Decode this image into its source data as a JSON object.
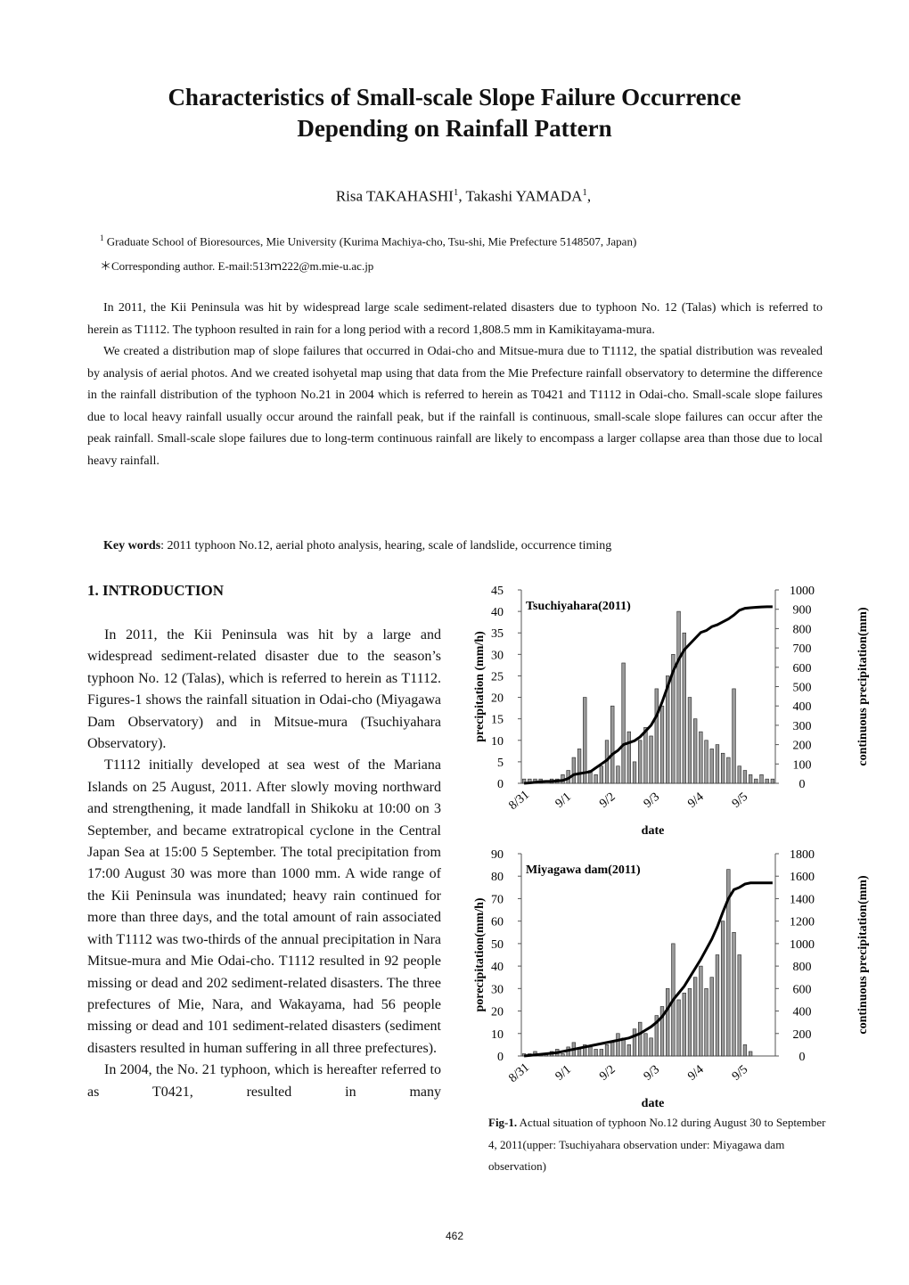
{
  "header": {
    "title_lines": [
      "Characteristics of Small-scale Slope Failure Occurrence",
      "Depending on Rainfall Pattern"
    ],
    "authors": [
      {
        "name": "Risa TAKAHASHI",
        "sup": "1",
        "after": ","
      },
      {
        "name": "Takashi YAMADA",
        "sup": "1",
        "after": ","
      }
    ],
    "affiliation": {
      "sup": "1",
      "text": "Graduate School of Bioresources, Mie University (Kurima Machiya-cho, Tsu-shi, Mie Prefecture 5148507, Japan)"
    },
    "corresponding": "＊Corresponding author. E-mail:513ｍ222@m.mie-u.ac.jp"
  },
  "abstract": [
    "In 2011, the Kii Peninsula was hit by widespread large scale sediment-related disasters due to typhoon No. 12 (Talas) which is referred to herein as T1112. The typhoon resulted in rain for a long period with a record 1,808.5 mm in Kamikitayama-mura.",
    "We created a distribution map of slope failures that occurred in Odai-cho and Mitsue-mura due to T1112, the spatial distribution was revealed by analysis of aerial photos. And we created isohyetal map using that data from the Mie Prefecture rainfall observatory to determine the difference in the rainfall distribution of the typhoon No.21 in 2004 which is referred to herein as T0421 and T1112 in Odai-cho. Small-scale slope failures due to local heavy rainfall usually occur around the rainfall peak, but if the rainfall is continuous, small-scale slope failures can occur after the peak rainfall. Small-scale slope failures due to long-term continuous rainfall are likely to encompass a larger collapse area than those due to local heavy rainfall."
  ],
  "keywords": {
    "label": "Key words",
    "text": ": 2011 typhoon No.12, aerial photo analysis, hearing, scale of landslide, occurrence timing"
  },
  "section": {
    "heading": "1.   INTRODUCTION",
    "paragraphs": [
      "In 2011, the Kii Peninsula was hit by a large and widespread sediment-related disaster due to the season’s typhoon No. 12 (Talas), which is referred to herein as T1112. Figures-1 shows the rainfall situation in Odai-cho (Miyagawa Dam Observatory) and in Mitsue-mura (Tsuchiyahara Observatory).",
      "T1112 initially developed at sea west of the Mariana Islands on 25 August, 2011. After slowly moving northward and strengthening, it made landfall in Shikoku at 10:00 on 3 September, and became extratropical cyclone in the Central Japan Sea at 15:00 5 September. The total precipitation from 17:00 August 30 was more than 1000 mm. A wide range of the Kii Peninsula was inundated; heavy rain continued for more than three days, and the total amount of rain associated with T1112 was two-thirds of the annual precipitation in Nara Mitsue-mura and Mie Odai-cho. T1112 resulted in 92 people missing or dead and 202 sediment-related disasters. The three prefectures of Mie, Nara, and Wakayama, had 56 people missing or dead and 101 sediment-related disasters (sediment disasters resulted in human suffering in all three prefectures).",
      "In 2004, the No. 21 typhoon, which is hereafter referred to as T0421, resulted in many"
    ]
  },
  "chart_data": [
    {
      "type": "bar-line",
      "title": "Tsuchiyahara(2011)",
      "x_label": "date",
      "y_label": "precipitation (mm/h)",
      "y2_label": "continuous precipitation(mm)",
      "categories": [
        "8/31",
        null,
        null,
        null,
        null,
        null,
        null,
        null,
        "9/1",
        null,
        null,
        null,
        null,
        null,
        null,
        null,
        "9/2",
        null,
        null,
        null,
        null,
        null,
        null,
        null,
        "9/3",
        null,
        null,
        null,
        null,
        null,
        null,
        null,
        "9/4",
        null,
        null,
        null,
        null,
        null,
        null,
        null,
        "9/5",
        null,
        null,
        null,
        null,
        null
      ],
      "series": [
        {
          "type": "bar",
          "color": "#9a9a9a",
          "values": [
            1,
            1,
            1,
            1,
            0,
            1,
            1,
            2,
            3,
            6,
            8,
            20,
            3,
            2,
            4,
            10,
            18,
            4,
            28,
            12,
            5,
            10,
            13,
            11,
            22,
            18,
            25,
            30,
            40,
            35,
            20,
            15,
            12,
            10,
            8,
            9,
            7,
            6,
            22,
            4,
            3,
            2,
            1,
            2,
            1,
            1
          ]
        },
        {
          "type": "line",
          "axis": "y2",
          "color": "#000000",
          "values": [
            0,
            2,
            5,
            8,
            10,
            10,
            12,
            15,
            25,
            45,
            50,
            55,
            60,
            80,
            100,
            120,
            150,
            170,
            200,
            210,
            220,
            240,
            270,
            300,
            350,
            420,
            500,
            580,
            640,
            690,
            720,
            750,
            780,
            790,
            810,
            820,
            835,
            850,
            870,
            895,
            905,
            908,
            910,
            912,
            913,
            913
          ]
        }
      ],
      "ylim": [
        0,
        45
      ],
      "yticks": [
        0,
        5,
        10,
        15,
        20,
        25,
        30,
        35,
        40,
        45
      ],
      "y2lim": [
        0,
        1000
      ],
      "y2ticks": [
        0,
        100,
        200,
        300,
        400,
        500,
        600,
        700,
        800,
        900,
        1000
      ]
    },
    {
      "type": "bar-line",
      "title": "Miyagawa dam(2011)",
      "x_label": "date",
      "y_label": "porecipitation(mm/h)",
      "y2_label": "continuous precipitation(mm)",
      "categories": [
        "8/31",
        null,
        null,
        null,
        null,
        null,
        null,
        null,
        "9/1",
        null,
        null,
        null,
        null,
        null,
        null,
        null,
        "9/2",
        null,
        null,
        null,
        null,
        null,
        null,
        null,
        "9/3",
        null,
        null,
        null,
        null,
        null,
        null,
        null,
        "9/4",
        null,
        null,
        null,
        null,
        null,
        null,
        null,
        "9/5",
        null,
        null,
        null,
        null,
        null
      ],
      "series": [
        {
          "type": "bar",
          "color": "#9a9a9a",
          "values": [
            1,
            1,
            2,
            1,
            1,
            2,
            3,
            1,
            4,
            6,
            3,
            5,
            4,
            3,
            3,
            5,
            6,
            10,
            8,
            5,
            12,
            15,
            10,
            8,
            18,
            22,
            30,
            50,
            25,
            28,
            30,
            35,
            40,
            30,
            35,
            45,
            60,
            83,
            55,
            45,
            5,
            2,
            0,
            0,
            0,
            0
          ]
        },
        {
          "type": "line",
          "axis": "y2",
          "color": "#000000",
          "values": [
            0,
            5,
            10,
            15,
            20,
            25,
            30,
            40,
            50,
            60,
            70,
            80,
            90,
            100,
            110,
            120,
            130,
            140,
            150,
            160,
            180,
            200,
            230,
            260,
            300,
            350,
            420,
            500,
            560,
            620,
            700,
            780,
            860,
            950,
            1040,
            1150,
            1280,
            1400,
            1480,
            1500,
            1530,
            1540,
            1540,
            1540,
            1540,
            1540
          ]
        }
      ],
      "ylim": [
        0,
        90
      ],
      "yticks": [
        0,
        10,
        20,
        30,
        40,
        50,
        60,
        70,
        80,
        90
      ],
      "y2lim": [
        0,
        1800
      ],
      "y2ticks": [
        0,
        200,
        400,
        600,
        800,
        1000,
        1200,
        1400,
        1600,
        1800
      ]
    }
  ],
  "caption": {
    "label": "Fig-1.",
    "text": " Actual situation of typhoon No.12 during August 30 to September 4, 2011(upper: Tsuchiyahara observation under: Miyagawa dam observation)"
  },
  "page_number": "462"
}
